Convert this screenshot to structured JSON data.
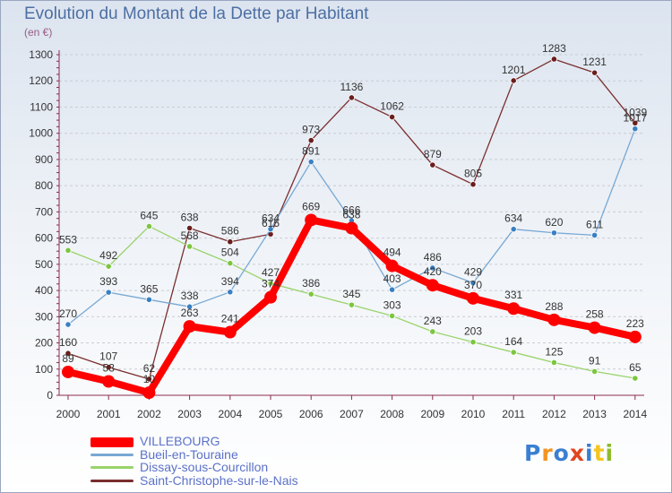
{
  "title": "Evolution du Montant de la Dette par Habitant",
  "subtitle": "(en €)",
  "logo": {
    "text": "Proxiti",
    "colors": [
      "#3a7fd1",
      "#f39321",
      "#3a7fd1",
      "#e2451f",
      "#3a7fd1",
      "#f3c520",
      "#8dbb2b"
    ]
  },
  "chart_data": {
    "type": "line",
    "x": [
      "2000",
      "2001",
      "2002",
      "2003",
      "2004",
      "2005",
      "2006",
      "2007",
      "2008",
      "2009",
      "2010",
      "2011",
      "2012",
      "2013",
      "2014"
    ],
    "ylim": [
      0,
      1300
    ],
    "yticks": [
      0,
      100,
      200,
      300,
      400,
      500,
      600,
      700,
      800,
      900,
      1000,
      1100,
      1200,
      1300
    ],
    "grid": true,
    "legend_position": "bottom-left",
    "series": [
      {
        "name": "Saint-Christophe-sur-le-Nais",
        "color": "#7a2e2e",
        "marker": "#6a1e1e",
        "width": 1.3,
        "r": 3.2,
        "values": [
          160,
          107,
          62,
          638,
          586,
          615,
          973,
          1136,
          1062,
          879,
          805,
          1201,
          1283,
          1231,
          1039
        ]
      },
      {
        "name": "Dissay-sous-Courcillon",
        "color": "#99d36b",
        "marker": "#7cc63f",
        "width": 1.3,
        "r": 3.2,
        "values": [
          553,
          492,
          645,
          568,
          504,
          427,
          386,
          345,
          303,
          243,
          203,
          164,
          125,
          91,
          65
        ]
      },
      {
        "name": "Bueil-en-Touraine",
        "color": "#78a8d4",
        "marker": "#3a80c4",
        "width": 1.3,
        "r": 3.2,
        "values": [
          270,
          393,
          365,
          338,
          394,
          634,
          891,
          666,
          403,
          486,
          429,
          634,
          620,
          611,
          1017
        ]
      },
      {
        "name": "VILLEBOURG",
        "color": "#ff0000",
        "marker": "#ff0000",
        "width": 8,
        "r": 7,
        "values": [
          89,
          53,
          10,
          263,
          241,
          374,
          669,
          638,
          494,
          420,
          370,
          331,
          288,
          258,
          223
        ]
      }
    ],
    "data_labels": [
      {
        "series": 0,
        "labels": [
          "160",
          "107",
          "62",
          "638",
          "586",
          "615",
          "973",
          "1136",
          "1062",
          "879",
          "805",
          "1201",
          "1283",
          "1231",
          "1039"
        ]
      },
      {
        "series": 1,
        "labels": [
          "553",
          "492",
          "645",
          "568",
          "504",
          "427",
          "386",
          "345",
          "303",
          "243",
          "203",
          "164",
          "125",
          "91",
          "65"
        ]
      },
      {
        "series": 2,
        "labels": [
          "270",
          "393",
          "365",
          "338",
          "394",
          "634",
          "891",
          "666",
          "403",
          "486",
          "429",
          "634",
          "620",
          "611",
          "1017"
        ]
      },
      {
        "series": 3,
        "labels": [
          "89",
          "53",
          "10",
          "263",
          "241",
          "374",
          "669",
          "638",
          "494",
          "420",
          "370",
          "331",
          "288",
          "258",
          "223"
        ]
      }
    ],
    "legend": [
      {
        "name": "VILLEBOURG",
        "color": "#ff0000",
        "thick": true
      },
      {
        "name": "Bueil-en-Touraine",
        "color": "#78a8d4",
        "thick": false
      },
      {
        "name": "Dissay-sous-Courcillon",
        "color": "#99d36b",
        "thick": false
      },
      {
        "name": "Saint-Christophe-sur-le-Nais",
        "color": "#7a2e2e",
        "thick": false
      }
    ]
  }
}
